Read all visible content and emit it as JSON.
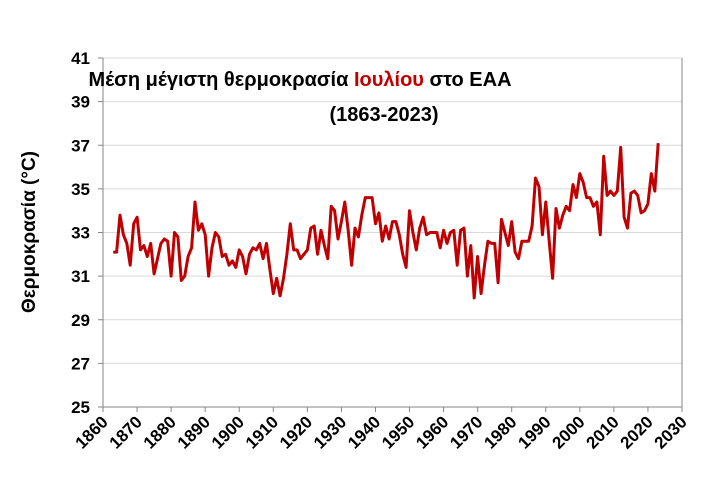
{
  "chart_data": {
    "type": "line",
    "title_parts": [
      "Μέση μέγιστη θερμοκρασία ",
      "Ιουλίου",
      " στο ΕΑΑ"
    ],
    "subtitle": "(1863-2023)",
    "xlabel": "",
    "ylabel": "Θερμοκρασία (°C)",
    "xlim": [
      1860,
      2030
    ],
    "ylim": [
      25,
      41
    ],
    "xticks": [
      1860,
      1870,
      1880,
      1890,
      1900,
      1910,
      1920,
      1930,
      1940,
      1950,
      1960,
      1970,
      1980,
      1990,
      2000,
      2010,
      2020,
      2030
    ],
    "yticks": [
      25,
      27,
      29,
      31,
      33,
      35,
      37,
      39,
      41
    ],
    "grid": "horizontal",
    "legend": "none",
    "colors": {
      "series": "#C00000",
      "title_highlight": "#C00000",
      "grid": "#D9D9D9",
      "axis": "#868686"
    },
    "x_start": 1863,
    "series": [
      {
        "values": [
          32.1,
          32.1,
          33.8,
          32.9,
          32.5,
          31.5,
          33.4,
          33.7,
          32.2,
          32.4,
          31.9,
          32.5,
          31.1,
          31.8,
          32.5,
          32.7,
          32.6,
          31.0,
          33.0,
          32.8,
          30.8,
          31.0,
          31.9,
          32.3,
          34.4,
          33.1,
          33.4,
          32.9,
          31.0,
          32.3,
          33.0,
          32.8,
          31.9,
          32.0,
          31.5,
          31.7,
          31.4,
          32.2,
          31.9,
          31.1,
          32.0,
          32.3,
          32.2,
          32.5,
          31.8,
          32.5,
          31.3,
          30.2,
          30.9,
          30.1,
          30.9,
          32.0,
          33.4,
          32.2,
          32.2,
          31.8,
          32.0,
          32.2,
          33.2,
          33.3,
          32.0,
          33.1,
          32.4,
          31.8,
          34.2,
          34.0,
          32.7,
          33.5,
          34.4,
          33.1,
          31.5,
          33.2,
          32.8,
          33.8,
          34.6,
          34.6,
          34.6,
          33.4,
          33.9,
          32.6,
          33.3,
          32.7,
          33.5,
          33.5,
          32.9,
          32.0,
          31.4,
          34.0,
          33.0,
          32.2,
          33.2,
          33.7,
          32.9,
          33.0,
          33.0,
          33.0,
          32.3,
          33.1,
          32.5,
          33.0,
          33.1,
          31.5,
          33.1,
          33.2,
          31.0,
          32.4,
          30.0,
          31.9,
          30.2,
          31.5,
          32.6,
          32.5,
          32.5,
          30.7,
          33.6,
          33.0,
          32.4,
          33.5,
          32.1,
          31.8,
          32.6,
          32.6,
          32.6,
          33.3,
          35.5,
          35.1,
          32.9,
          34.4,
          32.6,
          30.9,
          34.1,
          33.2,
          33.8,
          34.2,
          34.0,
          35.2,
          34.6,
          35.7,
          35.3,
          34.6,
          34.6,
          34.2,
          34.4,
          32.9,
          36.5,
          34.7,
          34.9,
          34.7,
          34.9,
          36.9,
          33.7,
          33.2,
          34.8,
          34.9,
          34.7,
          33.9,
          34.0,
          34.3,
          35.7,
          34.9,
          37.1
        ]
      }
    ]
  }
}
